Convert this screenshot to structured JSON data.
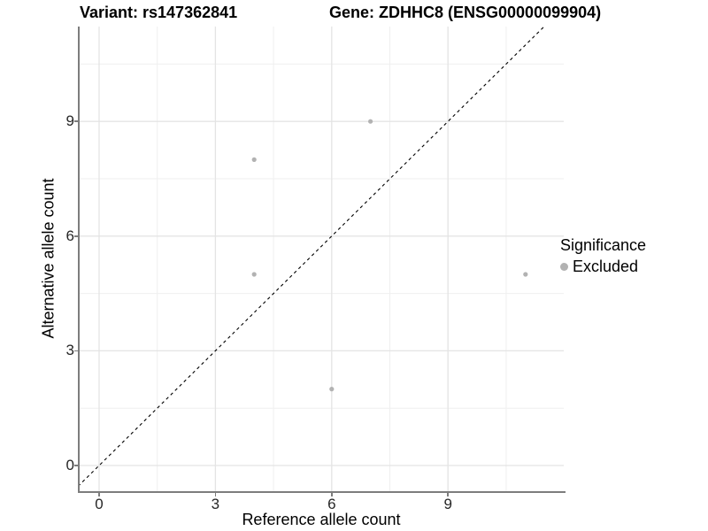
{
  "titles": {
    "variant": "Variant: rs147362841",
    "gene": "Gene: ZDHHC8 (ENSG00000099904)"
  },
  "chart_data": {
    "type": "scatter",
    "xlabel": "Reference allele count",
    "ylabel": "Alternative allele count",
    "x_ticks": [
      0,
      3,
      6,
      9
    ],
    "y_ticks": [
      0,
      3,
      6,
      9
    ],
    "xlim": [
      -0.8,
      12
    ],
    "ylim": [
      -0.7,
      11.5
    ],
    "grid": true,
    "identity_line": {
      "type": "abline",
      "slope": 1,
      "intercept": 0,
      "style": "dashed",
      "color": "#000000"
    },
    "series": [
      {
        "name": "Excluded",
        "color": "#b2b2b2",
        "points": [
          [
            4,
            8
          ],
          [
            7,
            9
          ],
          [
            4,
            5
          ],
          [
            11,
            5
          ],
          [
            6,
            2
          ]
        ]
      }
    ],
    "legend": {
      "title": "Significance",
      "position": "right",
      "entries": [
        {
          "label": "Excluded",
          "color": "#b2b2b2"
        }
      ]
    }
  },
  "colors": {
    "axis_line": "#7d7d7d",
    "grid_major": "#e4e4e4",
    "grid_minor": "#efefef",
    "point": "#b2b2b2",
    "tick_label": "#262626"
  }
}
